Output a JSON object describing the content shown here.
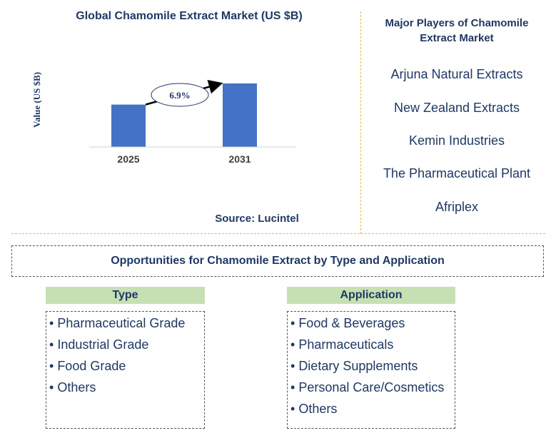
{
  "chart_data": {
    "type": "bar",
    "title": "Global Chamomile Extract Market (US $B)",
    "categories": [
      "2025",
      "2031"
    ],
    "values": [
      1.0,
      1.5
    ],
    "ylabel": "Value (US $B)",
    "xlabel": "",
    "ylim": [
      0,
      1.6
    ],
    "cagr_annotation": "6.9%",
    "bar_color": "#4472c4"
  },
  "source": "Source: Lucintel",
  "players": {
    "title": "Major Players of Chamomile Extract Market",
    "items": [
      "Arjuna Natural Extracts",
      "New Zealand Extracts",
      "Kemin Industries",
      "The Pharmaceutical Plant",
      "Afriplex"
    ]
  },
  "opportunities": {
    "title": "Opportunities for Chamomile Extract by Type and Application",
    "type": {
      "header": "Type",
      "items": [
        "Pharmaceutical Grade",
        "Industrial Grade",
        "Food Grade",
        "Others"
      ]
    },
    "application": {
      "header": "Application",
      "items": [
        "Food & Beverages",
        "Pharmaceuticals",
        "Dietary Supplements",
        "Personal Care/Cosmetics",
        "Others"
      ]
    }
  },
  "colors": {
    "text": "#1f3864",
    "divider": "#e7b84a",
    "header_green": "#c6e0b4"
  }
}
